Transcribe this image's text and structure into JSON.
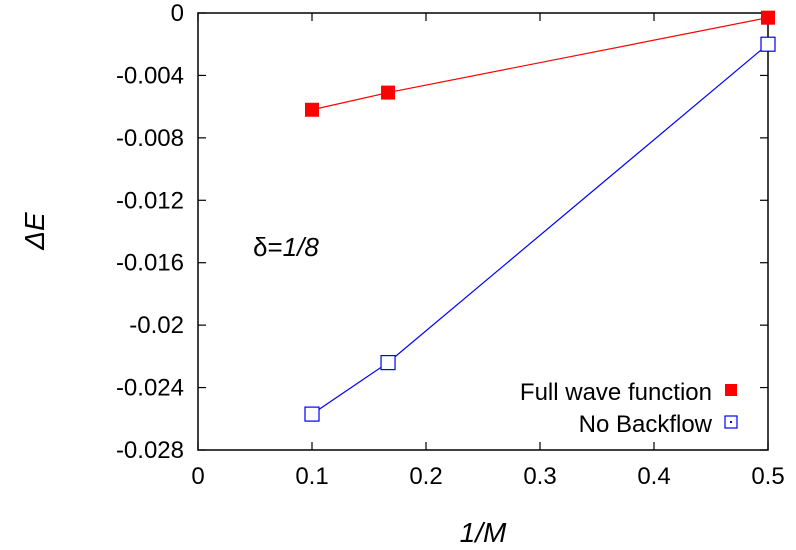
{
  "chart_data": {
    "type": "line",
    "xlabel": "1/M",
    "ylabel": "ΔE",
    "xlim": [
      0,
      0.5
    ],
    "ylim": [
      -0.028,
      0
    ],
    "xticks": [
      "0",
      "0.1",
      "0.2",
      "0.3",
      "0.4",
      "0.5"
    ],
    "yticks": [
      "0",
      "-0.004",
      "-0.008",
      "-0.012",
      "-0.016",
      "-0.02",
      "-0.024",
      "-0.028"
    ],
    "annotation": {
      "prefix": "δ=",
      "value": "1/8"
    },
    "legend_position": "bottom-right",
    "grid": false,
    "series": [
      {
        "name": "Full wave function",
        "color": "#ff0000",
        "marker": "filled-square",
        "x": [
          0.1,
          0.1667,
          0.5
        ],
        "y": [
          -0.0062,
          -0.0051,
          -0.0003
        ]
      },
      {
        "name": "No Backflow",
        "color": "#0000ff",
        "marker": "open-square",
        "x": [
          0.1,
          0.1667,
          0.5
        ],
        "y": [
          -0.0257,
          -0.0224,
          -0.002
        ]
      }
    ]
  }
}
